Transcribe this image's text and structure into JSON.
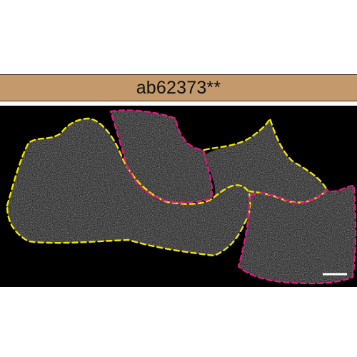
{
  "panel": {
    "label": "ab62373**",
    "label_bar_color": "#c49a6c",
    "background_color": "#000000"
  },
  "outlines": {
    "colors": {
      "yellow": "#f2e600",
      "magenta": "#e0177f"
    },
    "cells": [
      {
        "name": "cell-outline-yellow-left",
        "color_key": "yellow"
      },
      {
        "name": "cell-outline-magenta-top",
        "color_key": "magenta"
      },
      {
        "name": "cell-outline-yellow-right",
        "color_key": "yellow"
      },
      {
        "name": "cell-outline-magenta-bottom-right",
        "color_key": "magenta"
      }
    ]
  },
  "scale_bar": {
    "color": "#ffffff"
  }
}
